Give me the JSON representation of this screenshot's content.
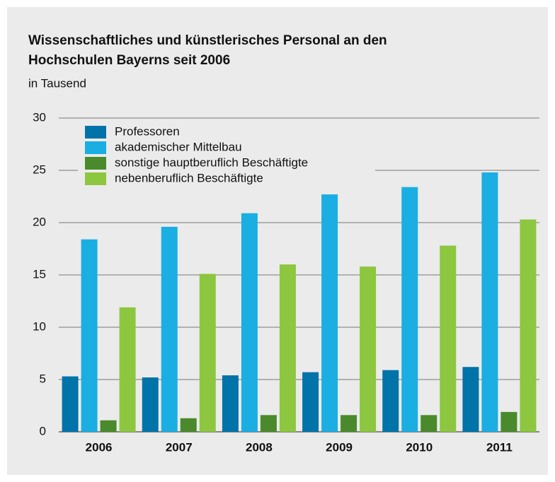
{
  "chart_data": {
    "type": "bar",
    "title": [
      "Wissenschaftliches und künstlerisches Personal an den",
      "Hochschulen Bayerns seit 2006"
    ],
    "subtitle": "in Tausend",
    "categories": [
      "2006",
      "2007",
      "2008",
      "2009",
      "2010",
      "2011"
    ],
    "series": [
      {
        "name": "Professoren",
        "color": "#0073a8",
        "values": [
          5.3,
          5.2,
          5.4,
          5.7,
          5.9,
          6.2
        ]
      },
      {
        "name": "akademischer Mittelbau",
        "color": "#1aaee3",
        "values": [
          18.4,
          19.6,
          20.9,
          22.7,
          23.4,
          24.8
        ]
      },
      {
        "name": "sonstige hauptberuflich Beschäftigte",
        "color": "#4a8a2c",
        "values": [
          1.1,
          1.3,
          1.6,
          1.6,
          1.6,
          1.9
        ]
      },
      {
        "name": "nebenberuflich Beschäftigte",
        "color": "#8dc63f",
        "values": [
          11.9,
          15.1,
          16.0,
          15.8,
          17.8,
          20.3
        ]
      }
    ],
    "ylim": [
      0,
      30
    ],
    "yticks": [
      0,
      5,
      10,
      15,
      20,
      25,
      30
    ],
    "grid": true,
    "legend": "top-left"
  }
}
